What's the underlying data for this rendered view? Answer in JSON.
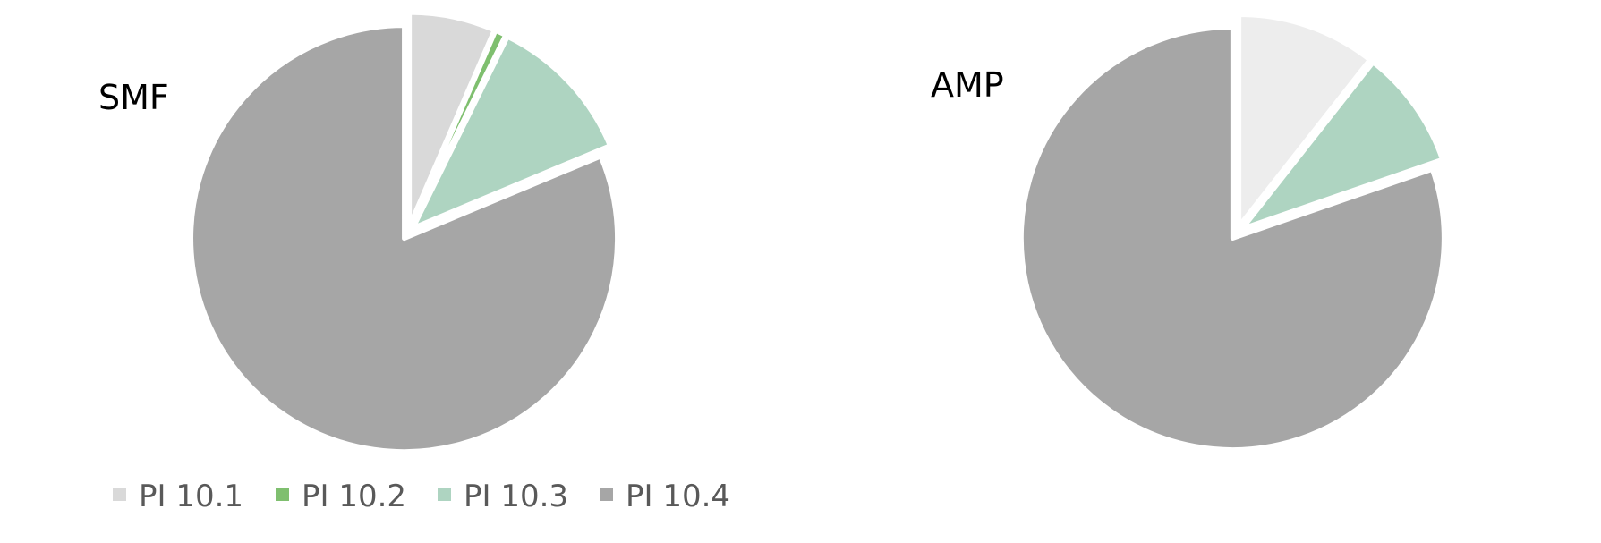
{
  "chart_data": [
    {
      "type": "pie",
      "title": "SMF",
      "categories": [
        "PI 10.1",
        "PI 10.2",
        "PI 10.3",
        "PI 10.4"
      ],
      "values": [
        6.5,
        0.8,
        11.4,
        81.3
      ],
      "colors": [
        "#d9d9d9",
        "#7fbf6f",
        "#aed4c1",
        "#a6a6a6"
      ],
      "start_angle_deg": 0,
      "direction": "clockwise",
      "exploded": true
    },
    {
      "type": "pie",
      "title": "AMP",
      "categories": [
        "PI 10.1",
        "PI 10.2",
        "PI 10.3",
        "PI 10.4"
      ],
      "values": [
        10.6,
        0,
        9.1,
        80.3
      ],
      "colors": [
        "#ededed",
        "#7fbf6f",
        "#aed4c1",
        "#a6a6a6"
      ],
      "start_angle_deg": 0,
      "direction": "clockwise",
      "exploded": true
    }
  ],
  "legend": {
    "placement": "bottom-left",
    "items": [
      {
        "label": "PI 10.1",
        "color": "#d9d9d9"
      },
      {
        "label": "PI 10.2",
        "color": "#7fbf6f"
      },
      {
        "label": "PI 10.3",
        "color": "#aed4c1"
      },
      {
        "label": "PI 10.4",
        "color": "#a6a6a6"
      }
    ]
  }
}
